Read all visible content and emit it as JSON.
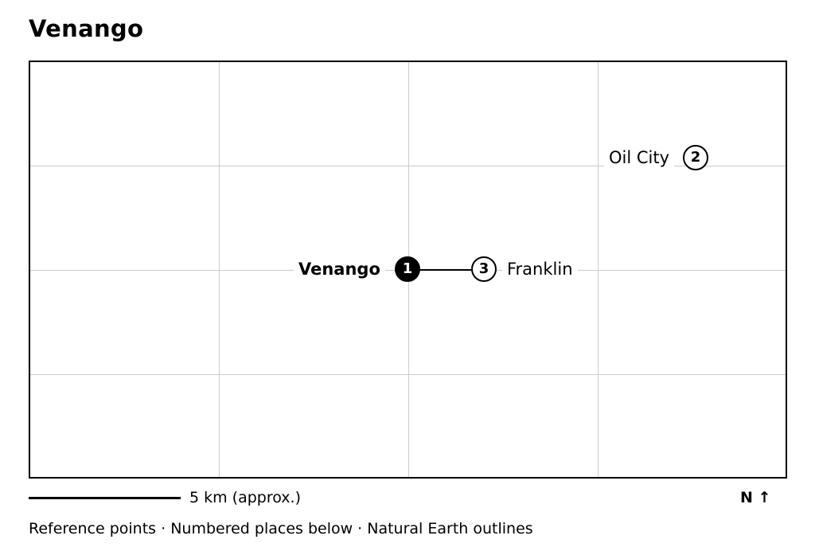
{
  "title": "Venango",
  "map": {
    "grid": true,
    "grid_color": "#cccccc",
    "places": [
      {
        "number": "1",
        "name": "Venango",
        "primary": true
      },
      {
        "number": "2",
        "name": "Oil City",
        "primary": false
      },
      {
        "number": "3",
        "name": "Franklin",
        "primary": false
      }
    ]
  },
  "scale": {
    "label": "5 km (approx.)"
  },
  "north": {
    "label": "N ↑"
  },
  "footer": {
    "text": "Reference points · Numbered places below · Natural Earth outlines"
  }
}
